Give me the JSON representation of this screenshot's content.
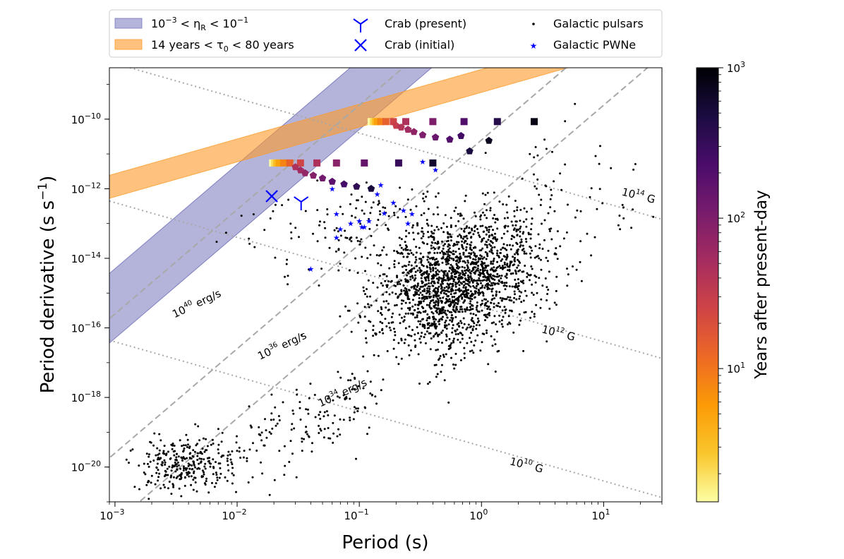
{
  "chart_data": {
    "type": "scatter",
    "xlabel": "Period (s)",
    "ylabel_main": "Period derivative (s s",
    "ylabel_sup": "−1",
    "ylabel_close": ")",
    "xscale": "log",
    "yscale": "log",
    "xlim": [
      0.0009,
      30
    ],
    "ylim": [
      1e-21,
      3e-09
    ],
    "x_ticks": [
      {
        "value": 0.001,
        "base": "10",
        "exp": "−3"
      },
      {
        "value": 0.01,
        "base": "10",
        "exp": "−2"
      },
      {
        "value": 0.1,
        "base": "10",
        "exp": "−1"
      },
      {
        "value": 1,
        "base": "10",
        "exp": "0"
      },
      {
        "value": 10,
        "base": "10",
        "exp": "1"
      }
    ],
    "y_ticks": [
      {
        "value": 1e-20,
        "base": "10",
        "exp": "−20"
      },
      {
        "value": 1e-18,
        "base": "10",
        "exp": "−18"
      },
      {
        "value": 1e-16,
        "base": "10",
        "exp": "−16"
      },
      {
        "value": 1e-14,
        "base": "10",
        "exp": "−14"
      },
      {
        "value": 1e-12,
        "base": "10",
        "exp": "−12"
      },
      {
        "value": 1e-10,
        "base": "10",
        "exp": "−10"
      }
    ],
    "colorbar": {
      "label": "Years after present-day",
      "scale": "log",
      "range": [
        1.3,
        1000
      ],
      "colormap": "inferno_r",
      "stops": [
        "#fcffa4",
        "#fac62d",
        "#fb9b06",
        "#ed6925",
        "#cf4446",
        "#a52c60",
        "#781c6d",
        "#4a0c6b",
        "#1b0c41",
        "#000004"
      ],
      "ticks": [
        {
          "value": 10,
          "base": "10",
          "exp": "1"
        },
        {
          "value": 100,
          "base": "10",
          "exp": "2"
        },
        {
          "value": 1000,
          "base": "10",
          "exp": "3"
        }
      ]
    },
    "legend": {
      "position": "top",
      "entries": [
        {
          "key": "eta_band",
          "marker": "band",
          "color": "#8888cc",
          "text": "10⁻³ < ηR < 10⁻¹"
        },
        {
          "key": "tau_band",
          "marker": "band",
          "color": "#fdb462",
          "text": "14 years < τ0 <  80 years"
        },
        {
          "key": "crab_present",
          "marker": "tri_down",
          "color": "#0000ff",
          "text": "Crab (present)"
        },
        {
          "key": "crab_initial",
          "marker": "x",
          "color": "#0000ff",
          "text": "Crab (initial)"
        },
        {
          "key": "pulsars",
          "marker": "dot",
          "color": "#000000",
          "text": "Galactic pulsars"
        },
        {
          "key": "pwne",
          "marker": "star",
          "color": "#0000ff",
          "text": "Galactic PWNe"
        }
      ]
    },
    "bands": [
      {
        "name": "eta_band",
        "description": "10^-3 < eta_R < 10^-1",
        "color": "#6a6ab8",
        "opacity": 0.5,
        "slope": 3,
        "log_pdot_at_logP_minus2": [
          -13.3,
          -11.3
        ]
      },
      {
        "name": "tau_band",
        "description": "14 years < tau_0 < 80 years",
        "color": "#fd9a28",
        "opacity": 0.6,
        "slope": 1,
        "log_pdot_at_logP_minus2": [
          -11.23,
          -10.57
        ]
      }
    ],
    "edot_lines": [
      {
        "label": "10",
        "sup": "40",
        "unit": " erg/s",
        "log_pdot_at_logP_minus3": -15.6,
        "slope": 3,
        "label_at": [
          0.0048,
          4e-16
        ]
      },
      {
        "label": "10",
        "sup": "36",
        "unit": " erg/s",
        "log_pdot_at_logP_minus3": -19.6,
        "slope": 3,
        "label_at": [
          0.024,
          2.5e-17
        ]
      },
      {
        "label": "10",
        "sup": "34",
        "unit": " erg/s",
        "log_pdot_at_logP_minus3": -21.6,
        "slope": 3,
        "label_at": [
          0.075,
          1.1e-18
        ]
      }
    ],
    "bfield_lines": [
      {
        "label": "10",
        "sup": "14",
        "unit": " G",
        "log_pdot_at_logP0": -11.4,
        "slope": -1,
        "label_at": [
          19,
          5e-13
        ]
      },
      {
        "label": "10",
        "sup": "12",
        "unit": " G",
        "log_pdot_at_logP0": -15.4,
        "slope": -1,
        "label_at": [
          4.2,
          5.6e-17
        ]
      },
      {
        "label": "10",
        "sup": "10",
        "unit": " G",
        "log_pdot_at_logP0": -19.4,
        "slope": -1,
        "label_at": [
          2.3,
          9e-21
        ]
      }
    ],
    "crab": {
      "present": [
        0.0334,
        4.2e-13
      ],
      "initial": [
        0.0192,
        6.1e-13
      ]
    },
    "pwne": [
      [
        0.04,
        5e-15
      ],
      [
        0.065,
        4e-14
      ],
      [
        0.065,
        1.9e-13
      ],
      [
        0.07,
        7e-14
      ],
      [
        0.085,
        1e-13
      ],
      [
        0.1,
        1.2e-13
      ],
      [
        0.105,
        8e-14
      ],
      [
        0.11,
        8e-14
      ],
      [
        0.12,
        1.2e-13
      ],
      [
        0.14,
        7e-13
      ],
      [
        0.15,
        1.3e-12
      ],
      [
        0.16,
        2e-13
      ],
      [
        0.19,
        4e-13
      ],
      [
        0.23,
        2.4e-13
      ],
      [
        0.25,
        1e-13
      ],
      [
        0.27,
        1.9e-13
      ],
      [
        0.33,
        6e-12
      ],
      [
        0.42,
        3.5e-12
      ],
      [
        0.06,
        1e-12
      ]
    ],
    "evolution_tracks": [
      {
        "marker": "square",
        "points": [
          [
            0.0195,
            5.5e-12,
            1.3
          ],
          [
            0.0202,
            5.5e-12,
            2
          ],
          [
            0.021,
            5.5e-12,
            3
          ],
          [
            0.022,
            5.5e-12,
            5
          ],
          [
            0.024,
            5.5e-12,
            8
          ],
          [
            0.027,
            5.5e-12,
            14
          ],
          [
            0.033,
            5.5e-12,
            25
          ],
          [
            0.045,
            5.5e-12,
            45
          ],
          [
            0.065,
            5.5e-12,
            80
          ],
          [
            0.11,
            5.5e-12,
            150
          ],
          [
            0.21,
            5.5e-12,
            300
          ],
          [
            0.4,
            5.5e-12,
            600
          ]
        ]
      },
      {
        "marker": "pentagon",
        "points": [
          [
            0.03,
            4.2e-12,
            45
          ],
          [
            0.033,
            3.4e-12,
            55
          ],
          [
            0.036,
            2.8e-12,
            70
          ],
          [
            0.042,
            2.4e-12,
            90
          ],
          [
            0.05,
            2e-12,
            120
          ],
          [
            0.06,
            1.6e-12,
            170
          ],
          [
            0.075,
            1.35e-12,
            250
          ],
          [
            0.095,
            1.15e-12,
            350
          ],
          [
            0.125,
            1e-12,
            500
          ]
        ]
      },
      {
        "marker": "square",
        "points": [
          [
            0.125,
            8.5e-11,
            1.3
          ],
          [
            0.13,
            8.5e-11,
            2
          ],
          [
            0.135,
            8.5e-11,
            3
          ],
          [
            0.14,
            8.5e-11,
            5
          ],
          [
            0.15,
            8.5e-11,
            8
          ],
          [
            0.165,
            8.5e-11,
            14
          ],
          [
            0.19,
            8.5e-11,
            25
          ],
          [
            0.24,
            8.5e-11,
            45
          ],
          [
            0.4,
            8.5e-11,
            100
          ],
          [
            0.72,
            8.5e-11,
            200
          ],
          [
            1.35,
            8.5e-11,
            400
          ],
          [
            2.7,
            8.5e-11,
            800
          ]
        ]
      },
      {
        "marker": "pentagon",
        "points": [
          [
            0.2,
            6.5e-11,
            30
          ],
          [
            0.22,
            5.8e-11,
            40
          ],
          [
            0.25,
            5e-11,
            55
          ],
          [
            0.28,
            4.3e-11,
            75
          ],
          [
            0.33,
            3.5e-11,
            100
          ],
          [
            0.42,
            3e-11,
            140
          ],
          [
            0.55,
            2.6e-11,
            200
          ],
          [
            0.68,
            3.3e-11,
            260
          ],
          [
            0.8,
            1.2e-11,
            500
          ],
          [
            1.15,
            2.4e-11,
            700
          ]
        ]
      }
    ]
  }
}
